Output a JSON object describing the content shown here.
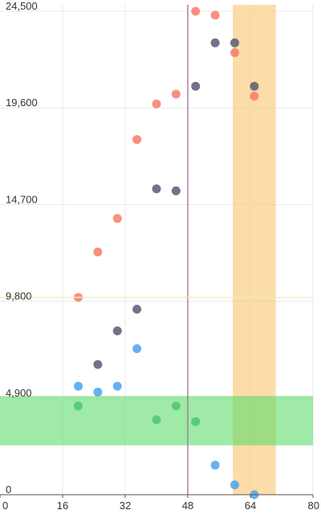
{
  "chart_data": {
    "type": "scatter",
    "title": "",
    "xlabel": "",
    "ylabel": "",
    "xlim": [
      0,
      80
    ],
    "ylim": [
      0,
      24500
    ],
    "x_ticks": [
      0,
      16,
      32,
      48,
      64,
      80
    ],
    "x_tick_labels": [
      "0",
      "16",
      "32",
      "48",
      "64",
      "80"
    ],
    "y_ticks": [
      0,
      4900,
      9800,
      14700,
      19600,
      24500
    ],
    "y_tick_labels": [
      "0",
      "4,900",
      "9,800",
      "14,700",
      "19,600",
      "24,500"
    ],
    "grid": true,
    "legend": "none",
    "reference_lines": [
      {
        "axis": "x",
        "value": 48,
        "color": "#a07090"
      },
      {
        "axis": "y",
        "value": 10000,
        "color": "#eeeebb"
      }
    ],
    "bands": [
      {
        "axis": "x",
        "from": 59.5,
        "to": 70.5,
        "color": "#fbc97a",
        "opacity": 0.65
      },
      {
        "axis": "y",
        "from": 2500,
        "to": 5000,
        "color": "#5fdc6a",
        "opacity": 0.6
      }
    ],
    "series": [
      {
        "color": "#f77b6b",
        "points": [
          [
            20,
            10000
          ],
          [
            25,
            12300
          ],
          [
            30,
            14000
          ],
          [
            35,
            18000
          ],
          [
            40,
            19800
          ],
          [
            45,
            20300
          ],
          [
            50,
            24500
          ],
          [
            55,
            24300
          ],
          [
            60,
            22400
          ],
          [
            65,
            20200
          ]
        ]
      },
      {
        "color": "#5a5878",
        "points": [
          [
            25,
            6600
          ],
          [
            30,
            8300
          ],
          [
            35,
            9400
          ],
          [
            40,
            15500
          ],
          [
            45,
            15400
          ],
          [
            50,
            20700
          ],
          [
            55,
            22900
          ],
          [
            60,
            22900
          ],
          [
            65,
            20700
          ]
        ]
      },
      {
        "color": "#4aa3f0",
        "points": [
          [
            20,
            5500
          ],
          [
            25,
            5200
          ],
          [
            30,
            5500
          ],
          [
            35,
            7400
          ],
          [
            55,
            1500
          ],
          [
            60,
            500
          ],
          [
            65,
            0
          ]
        ]
      },
      {
        "color": "#4fc478",
        "points": [
          [
            20,
            4500
          ],
          [
            40,
            3800
          ],
          [
            45,
            4500
          ],
          [
            50,
            3700
          ]
        ]
      }
    ]
  }
}
